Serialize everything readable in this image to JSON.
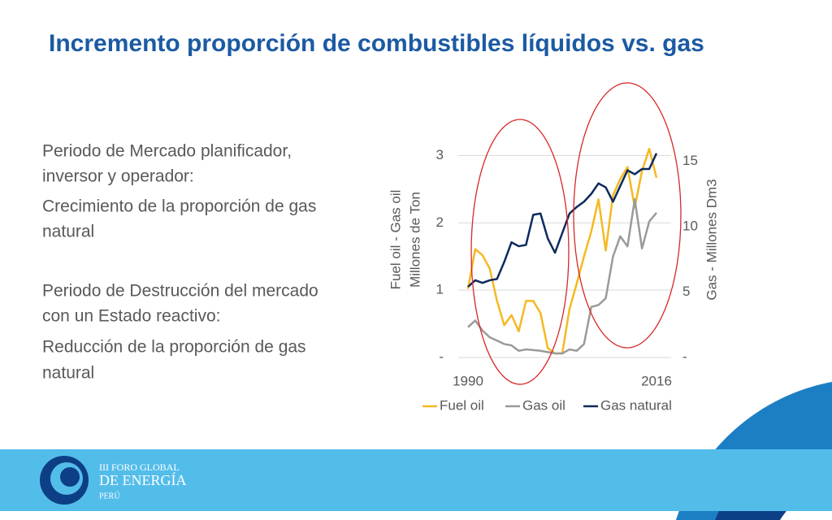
{
  "slide_title": "Incremento proporción de combustibles líquidos vs. gas",
  "paragraphs": [
    [
      "Periodo de Mercado planificador,",
      "inversor y operador:"
    ],
    [
      "Crecimiento de la proporción de gas",
      "natural"
    ],
    [
      "Periodo de Destrucción del mercado",
      "con un Estado reactivo:"
    ],
    [
      "Reducción de la proporción de gas",
      "natural"
    ]
  ],
  "logo": {
    "line1": "III FORO GLOBAL",
    "line2": "DE ENERGÍA",
    "line3": "PERÚ"
  },
  "chart_data": {
    "type": "line",
    "ylabel": [
      "Fuel oil - Gas oil",
      "Millones de Ton"
    ],
    "y2label": "Gas - Millones Dm3",
    "x": [
      1990,
      1991,
      1992,
      1993,
      1994,
      1995,
      1996,
      1997,
      1998,
      1999,
      2000,
      2001,
      2002,
      2003,
      2004,
      2005,
      2006,
      2007,
      2008,
      2009,
      2010,
      2011,
      2012,
      2013,
      2014,
      2015,
      2016
    ],
    "xlim": [
      1990,
      2016
    ],
    "xticks": [
      1990,
      2016
    ],
    "ylim": [
      0,
      3.5
    ],
    "yticks": [
      {
        "value": 0,
        "label": "-"
      },
      1,
      2,
      3
    ],
    "y2lim": [
      0,
      18
    ],
    "y2ticks": [
      {
        "value": 0,
        "label": "-"
      },
      5,
      10,
      15
    ],
    "grid": true,
    "legend": "bottom",
    "series": [
      {
        "name": "Fuel oil",
        "color": "#f5b921",
        "values": [
          1.02,
          1.61,
          1.52,
          1.32,
          0.84,
          0.48,
          0.63,
          0.39,
          0.84,
          0.84,
          0.66,
          0.14,
          0.06,
          0.06,
          0.72,
          1.1,
          1.5,
          1.87,
          2.35,
          1.59,
          2.41,
          2.65,
          2.83,
          2.23,
          2.77,
          3.1,
          2.67
        ]
      },
      {
        "name": "Gas oil",
        "color": "#9a9a9a",
        "values": [
          0.45,
          0.55,
          0.4,
          0.3,
          0.25,
          0.2,
          0.18,
          0.1,
          0.12,
          0.11,
          0.1,
          0.08,
          0.06,
          0.06,
          0.12,
          0.1,
          0.2,
          0.75,
          0.78,
          0.88,
          1.5,
          1.8,
          1.65,
          2.35,
          1.62,
          2.02,
          2.15
        ]
      },
      {
        "name": "Gas natural",
        "color": "#0d2a5c",
        "axis": "y2",
        "values": [
          5.4,
          5.9,
          5.7,
          5.9,
          6.0,
          7.3,
          8.8,
          8.5,
          8.6,
          10.9,
          11.0,
          9.1,
          8.0,
          9.5,
          11.0,
          11.5,
          11.9,
          12.5,
          13.3,
          13.0,
          11.9,
          13.1,
          14.3,
          14.0,
          14.4,
          14.4,
          15.6
        ]
      }
    ]
  }
}
